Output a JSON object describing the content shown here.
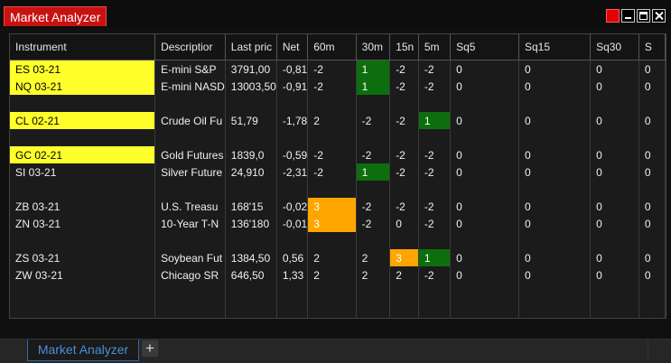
{
  "window": {
    "title": "Market Analyzer"
  },
  "columns": [
    "Instrument",
    "Descriptior",
    "Last pric",
    "Net",
    "60m",
    "30m",
    "15n",
    "5m",
    "Sq5",
    "Sq15",
    "Sq30",
    "S"
  ],
  "rows": [
    {
      "blank": false,
      "cells": [
        "ES 03-21",
        "E-mini S&P",
        "3791,00",
        "-0,81",
        "-2",
        "1",
        "-2",
        "-2",
        "0",
        "0",
        "0",
        "0"
      ],
      "hl": [
        "yellow",
        "",
        "",
        "",
        "",
        "green",
        "",
        "",
        "",
        "",
        "",
        ""
      ]
    },
    {
      "blank": false,
      "cells": [
        "NQ 03-21",
        "E-mini NASD",
        "13003,50",
        "-0,91",
        "-2",
        "1",
        "-2",
        "-2",
        "0",
        "0",
        "0",
        "0"
      ],
      "hl": [
        "yellow",
        "",
        "",
        "",
        "",
        "green",
        "",
        "",
        "",
        "",
        "",
        ""
      ]
    },
    {
      "blank": true
    },
    {
      "blank": false,
      "cells": [
        "CL 02-21",
        "Crude Oil Fu",
        "51,79",
        "-1,78",
        "2",
        "-2",
        "-2",
        "1",
        "0",
        "0",
        "0",
        "0"
      ],
      "hl": [
        "yellow",
        "",
        "",
        "",
        "",
        "",
        "",
        "green",
        "",
        "",
        "",
        ""
      ]
    },
    {
      "blank": true
    },
    {
      "blank": false,
      "cells": [
        "GC 02-21",
        "Gold Futures",
        "1839,0",
        "-0,59",
        "-2",
        "-2",
        "-2",
        "-2",
        "0",
        "0",
        "0",
        "0"
      ],
      "hl": [
        "yellow",
        "",
        "",
        "",
        "",
        "",
        "",
        "",
        "",
        "",
        "",
        ""
      ]
    },
    {
      "blank": false,
      "cells": [
        "SI 03-21",
        "Silver Future",
        "24,910",
        "-2,31",
        "-2",
        "1",
        "-2",
        "-2",
        "0",
        "0",
        "0",
        "0"
      ],
      "hl": [
        "",
        "",
        "",
        "",
        "",
        "green",
        "",
        "",
        "",
        "",
        "",
        ""
      ]
    },
    {
      "blank": true
    },
    {
      "blank": false,
      "cells": [
        "ZB 03-21",
        "U.S. Treasu",
        "168'15",
        "-0,02",
        "3",
        "-2",
        "-2",
        "-2",
        "0",
        "0",
        "0",
        "0"
      ],
      "hl": [
        "",
        "",
        "",
        "",
        "orange",
        "",
        "",
        "",
        "",
        "",
        "",
        ""
      ]
    },
    {
      "blank": false,
      "cells": [
        "ZN 03-21",
        "10-Year T-N",
        "136'180",
        "-0,01",
        "3",
        "-2",
        "0",
        "-2",
        "0",
        "0",
        "0",
        "0"
      ],
      "hl": [
        "",
        "",
        "",
        "",
        "orange",
        "",
        "",
        "",
        "",
        "",
        "",
        ""
      ]
    },
    {
      "blank": true
    },
    {
      "blank": false,
      "cells": [
        "ZS 03-21",
        "Soybean Fut",
        "1384,50",
        "0,56",
        "2",
        "2",
        "3",
        "1",
        "0",
        "0",
        "0",
        "0"
      ],
      "hl": [
        "",
        "",
        "",
        "",
        "",
        "",
        "orange",
        "green",
        "",
        "",
        "",
        ""
      ]
    },
    {
      "blank": false,
      "cells": [
        "ZW 03-21",
        "Chicago SR",
        "646,50",
        "1,33",
        "2",
        "2",
        "2",
        "-2",
        "0",
        "0",
        "0",
        "0"
      ],
      "hl": [
        "",
        "",
        "",
        "",
        "",
        "",
        "",
        "",
        "",
        "",
        "",
        ""
      ]
    },
    {
      "blank": true
    },
    {
      "blank": true
    }
  ],
  "bottom": {
    "active_tab": "Market Analyzer",
    "add_label": "+"
  },
  "colors": {
    "yellow": "#ffff2b",
    "green": "#0d6e0d",
    "orange": "#ffa500",
    "title_red": "#c81212",
    "tab_blue": "#4a8fd6"
  }
}
